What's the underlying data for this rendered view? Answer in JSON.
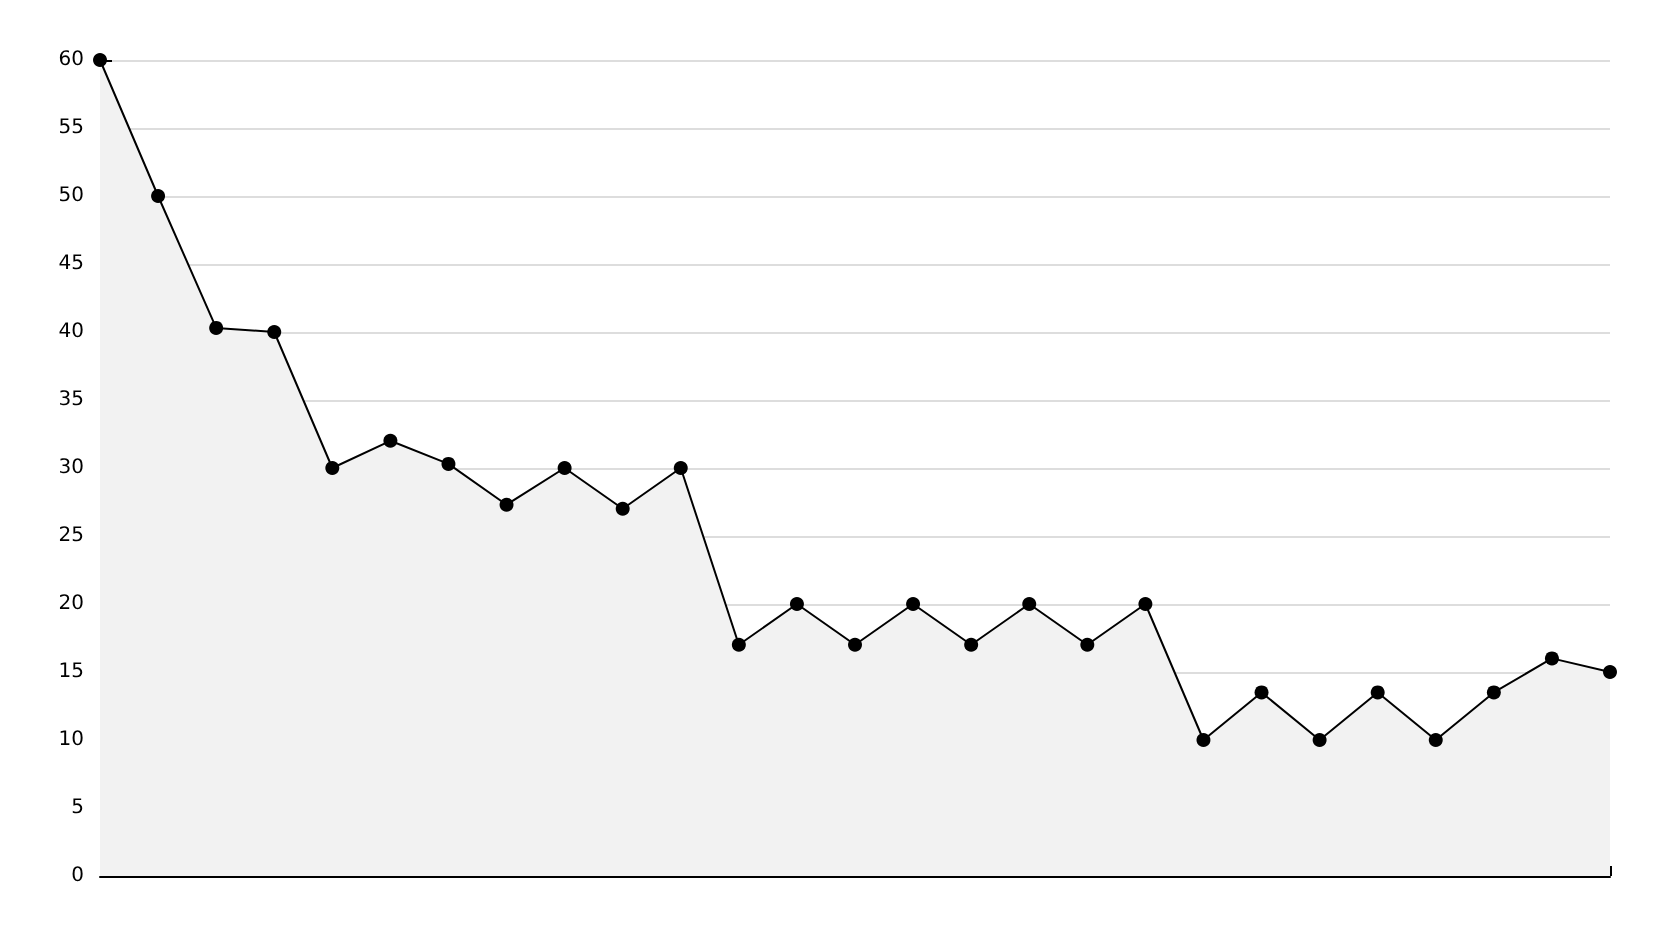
{
  "chart_data": {
    "type": "area",
    "categories": [
      null,
      null,
      null,
      null,
      null,
      null,
      null,
      null,
      null,
      null,
      null,
      null,
      null,
      null,
      null,
      null,
      null,
      null,
      null,
      null,
      null,
      null,
      null,
      null,
      null,
      null,
      null
    ],
    "series": [
      {
        "color": "#000000",
        "values": [
          60,
          50,
          40.3,
          40,
          30,
          32,
          30.3,
          27.3,
          30,
          27,
          30,
          17,
          20,
          17,
          20,
          17,
          20,
          17,
          20,
          10,
          13.5,
          10,
          13.5,
          10,
          13.5,
          16,
          15
        ]
      }
    ],
    "ylim": [
      0,
      60
    ],
    "yticks": [
      0,
      5,
      10,
      15,
      20,
      25,
      30,
      35,
      40,
      45,
      50,
      55,
      60
    ],
    "grid": "y",
    "marker": "circle",
    "line_style": "solid"
  }
}
